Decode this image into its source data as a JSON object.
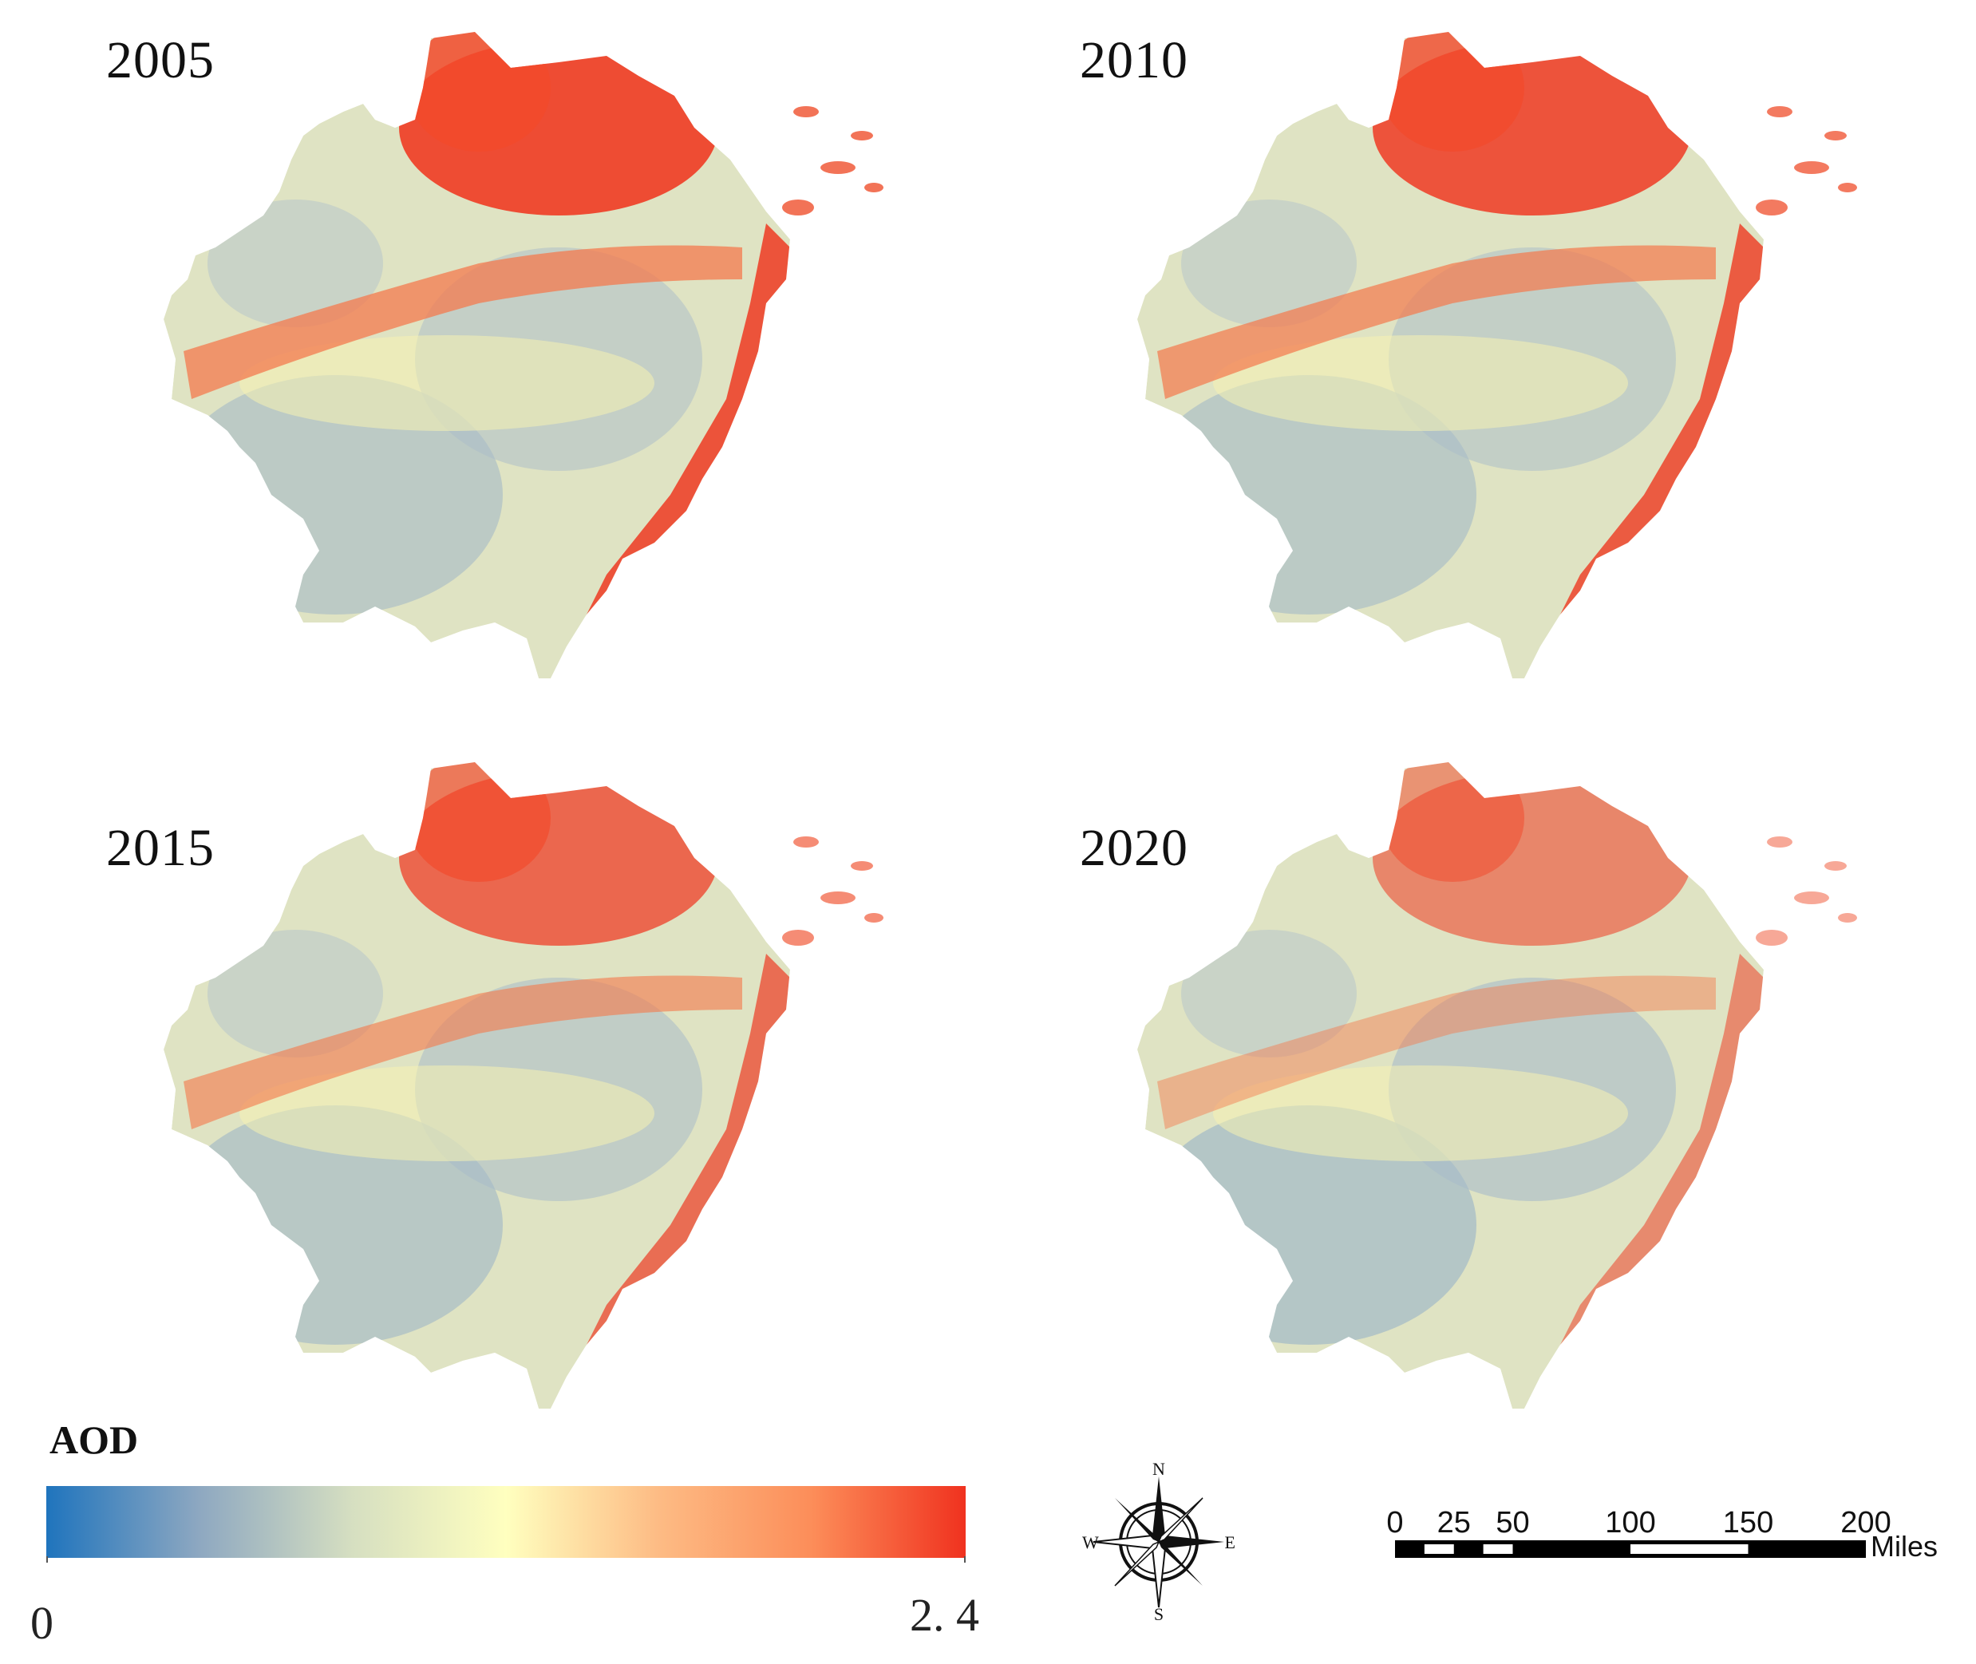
{
  "panels": [
    {
      "year": "2005"
    },
    {
      "year": "2010"
    },
    {
      "year": "2015"
    },
    {
      "year": "2020"
    }
  ],
  "legend": {
    "title": "AOD",
    "min_label": "0",
    "max_label": "2. 4",
    "range": [
      0,
      2.4
    ],
    "colors": [
      "#1f74bd",
      "#8ea8c1",
      "#d6dfc1",
      "#ffffbf",
      "#fdbb84",
      "#fc8d59",
      "#f0321f"
    ]
  },
  "compass": {
    "n": "N",
    "s": "S",
    "e": "E",
    "w": "W"
  },
  "scale_bar": {
    "ticks": [
      "0",
      "25",
      "50",
      "100",
      "150",
      "200"
    ],
    "unit": "Miles"
  }
}
